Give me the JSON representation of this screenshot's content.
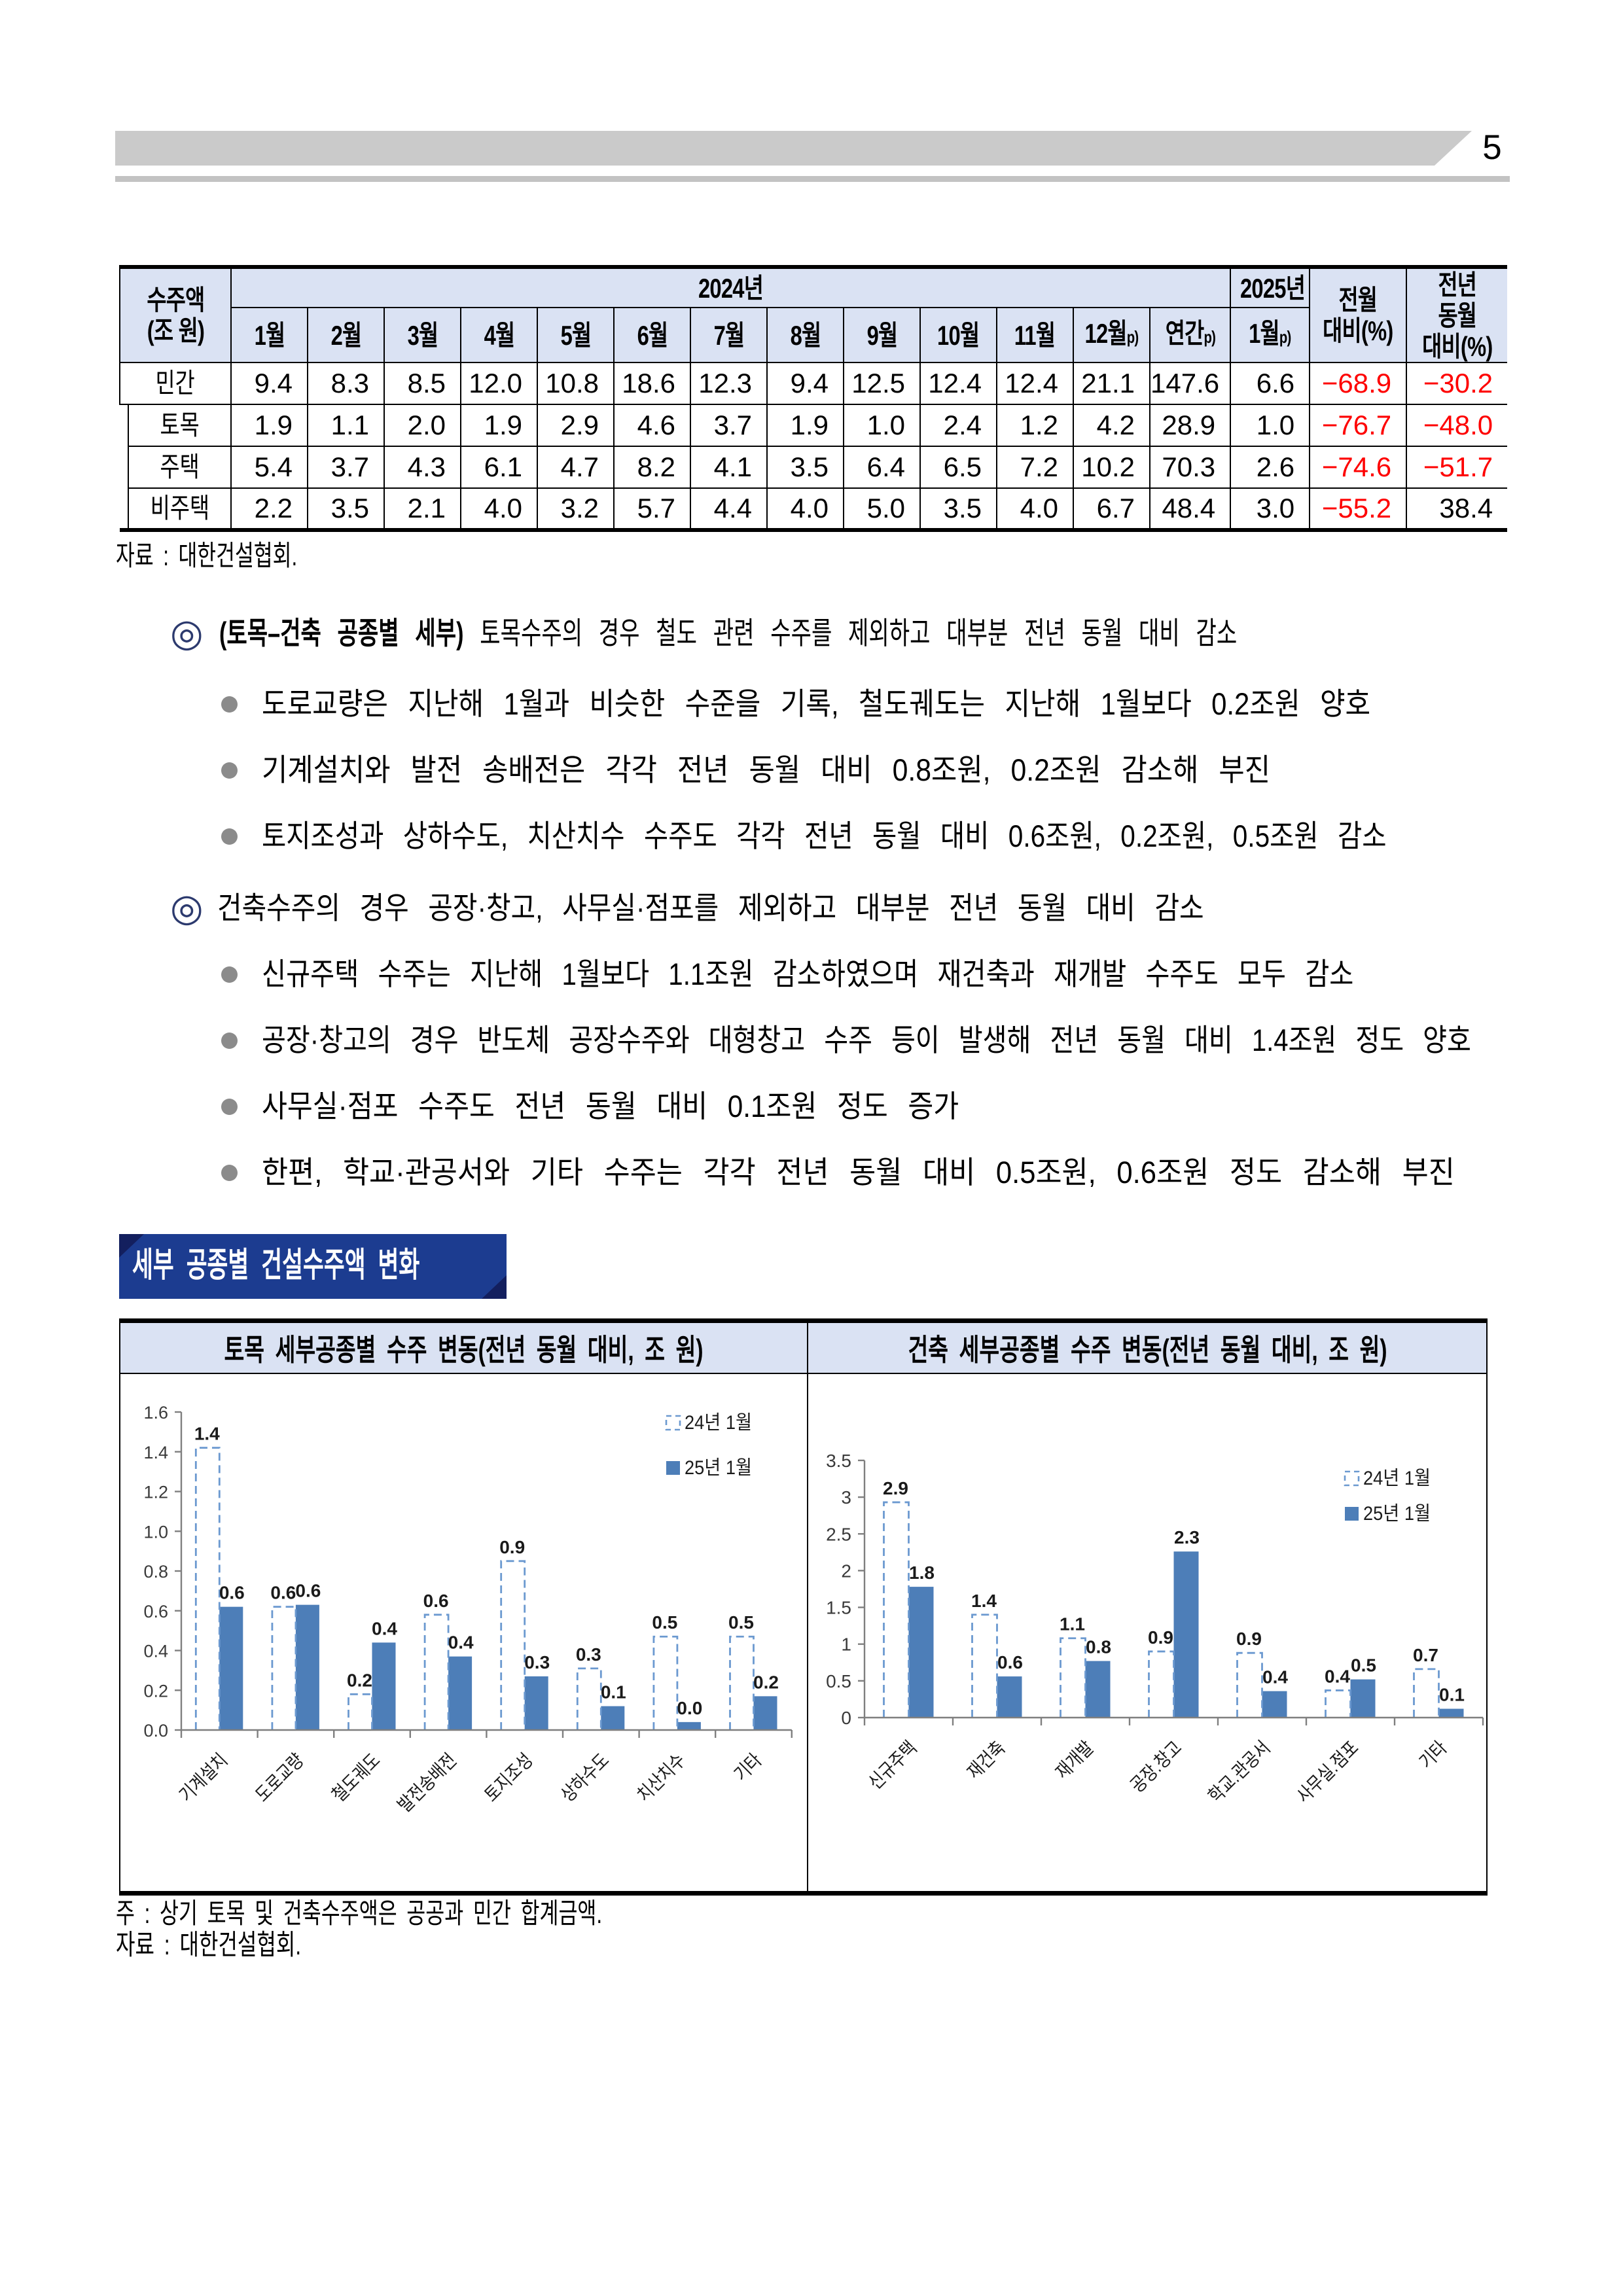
{
  "page": {
    "number": "5"
  },
  "table": {
    "corner_line1": "수주액",
    "corner_line2": "(조 원)",
    "group_2024": "2024년",
    "group_2025": "2025년",
    "col_mom_line1": "전월",
    "col_mom_line2": "대비(%)",
    "col_yoy_line1": "전년",
    "col_yoy_line2": "동월",
    "col_yoy_line3": "대비(%)",
    "month_cols": [
      {
        "label": "1월",
        "sup": ""
      },
      {
        "label": "2월",
        "sup": ""
      },
      {
        "label": "3월",
        "sup": ""
      },
      {
        "label": "4월",
        "sup": ""
      },
      {
        "label": "5월",
        "sup": ""
      },
      {
        "label": "6월",
        "sup": ""
      },
      {
        "label": "7월",
        "sup": ""
      },
      {
        "label": "8월",
        "sup": ""
      },
      {
        "label": "9월",
        "sup": ""
      },
      {
        "label": "10월",
        "sup": ""
      },
      {
        "label": "11월",
        "sup": ""
      },
      {
        "label": "12월",
        "sup": "p)"
      },
      {
        "label": "연간",
        "sup": "p)"
      }
    ],
    "col_jan25": {
      "label": "1월",
      "sup": "p)"
    },
    "rows": [
      {
        "label": "민간",
        "indent": false,
        "values": [
          "9.4",
          "8.3",
          "8.5",
          "12.0",
          "10.8",
          "18.6",
          "12.3",
          "9.4",
          "12.5",
          "12.4",
          "12.4",
          "21.1",
          "147.6"
        ],
        "jan25": "6.6",
        "mom": "−68.9",
        "yoy": "−30.2",
        "mom_red": true,
        "yoy_red": true
      },
      {
        "label": "토목",
        "indent": true,
        "values": [
          "1.9",
          "1.1",
          "2.0",
          "1.9",
          "2.9",
          "4.6",
          "3.7",
          "1.9",
          "1.0",
          "2.4",
          "1.2",
          "4.2",
          "28.9"
        ],
        "jan25": "1.0",
        "mom": "−76.7",
        "yoy": "−48.0",
        "mom_red": true,
        "yoy_red": true
      },
      {
        "label": "주택",
        "indent": true,
        "values": [
          "5.4",
          "3.7",
          "4.3",
          "6.1",
          "4.7",
          "8.2",
          "4.1",
          "3.5",
          "6.4",
          "6.5",
          "7.2",
          "10.2",
          "70.3"
        ],
        "jan25": "2.6",
        "mom": "−74.6",
        "yoy": "−51.7",
        "mom_red": true,
        "yoy_red": true
      },
      {
        "label": "비주택",
        "indent": true,
        "values": [
          "2.2",
          "3.5",
          "2.1",
          "4.0",
          "3.2",
          "5.7",
          "4.4",
          "4.0",
          "5.0",
          "3.5",
          "4.0",
          "6.7",
          "48.4"
        ],
        "jan25": "3.0",
        "mom": "−55.2",
        "yoy": "38.4",
        "mom_red": true,
        "yoy_red": false
      }
    ],
    "source_note": "자료 : 대한건설협회."
  },
  "sections": [
    {
      "marker": "◎",
      "head_bold": "(토목–건축 공종별 세부)",
      "head_rest": " 토목수주의 경우 철도 관련 수주를 제외하고 대부분 전년 동월 대비 감소",
      "bullets": [
        "도로교량은 지난해 1월과 비슷한 수준을 기록, 철도궤도는 지난해 1월보다 0.2조원 양호",
        "기계설치와 발전 송배전은 각각 전년 동월 대비 0.8조원, 0.2조원 감소해 부진",
        "토지조성과 상하수도, 치산치수 수주도 각각 전년 동월 대비 0.6조원, 0.2조원, 0.5조원 감소"
      ]
    },
    {
      "marker": "◎",
      "head_bold": "",
      "head_rest": "건축수주의 경우 공장·창고, 사무실·점포를 제외하고 대부분 전년 동월 대비 감소",
      "bullets": [
        "신규주택 수주는 지난해 1월보다 1.1조원 감소하였으며 재건축과 재개발 수주도 모두 감소",
        "공장·창고의 경우 반도체 공장수주와 대형창고 수주 등이 발생해 전년 동월 대비 1.4조원 정도 양호",
        "사무실·점포 수주도 전년 동월 대비 0.1조원 정도 증가",
        "한편, 학교·관공서와 기타 수주는 각각 전년 동월 대비 0.5조원, 0.6조원 정도 감소해 부진"
      ]
    }
  ],
  "banner": {
    "title": "세부 공종별 건설수주액 변화"
  },
  "chart_notes": [
    "주 : 상기 토목 및 건축수주액은 공공과 민간 합계금액.",
    "자료 : 대한건설협회."
  ],
  "chart_data": [
    {
      "type": "bar",
      "title": "토목 세부공종별 수주 변동(전년 동월 대비, 조 원)",
      "categories": [
        "기계설치",
        "도로교량",
        "철도궤도",
        "발전송배전",
        "토지조성",
        "상하수도",
        "치산치수",
        "기타"
      ],
      "series": [
        {
          "name": "24년 1월",
          "style": "dashed",
          "values": [
            1.4,
            0.6,
            0.2,
            0.6,
            0.9,
            0.3,
            0.5,
            0.5
          ],
          "labels": [
            "1.4",
            "0.6",
            "0.2",
            "0.6",
            "0.9",
            "0.3",
            "0.5",
            "0.5"
          ],
          "display_heights": [
            1.42,
            0.62,
            0.18,
            0.58,
            0.85,
            0.31,
            0.47,
            0.47
          ]
        },
        {
          "name": "25년 1월",
          "style": "solid",
          "values": [
            0.6,
            0.6,
            0.4,
            0.4,
            0.3,
            0.1,
            0.0,
            0.2
          ],
          "labels": [
            "0.6",
            "0.6",
            "0.4",
            "0.4",
            "0.3",
            "0.1",
            "0.0",
            "0.2"
          ],
          "display_heights": [
            0.62,
            0.63,
            0.44,
            0.37,
            0.27,
            0.12,
            0.04,
            0.17
          ]
        }
      ],
      "xlabel": "",
      "ylabel": "",
      "ylim": [
        0,
        1.6
      ],
      "yticks": [
        "0.0",
        "0.2",
        "0.4",
        "0.6",
        "0.8",
        "1.0",
        "1.2",
        "1.4",
        "1.6"
      ],
      "grid": false,
      "legend_position": "top-right"
    },
    {
      "type": "bar",
      "title": "건축 세부공종별 수주 변동(전년 동월 대비, 조 원)",
      "categories": [
        "신규주택",
        "재건축",
        "재개발",
        "공장.창고",
        "학교.관공서",
        "사무실.점포",
        "기타"
      ],
      "series": [
        {
          "name": "24년 1월",
          "style": "dashed",
          "values": [
            2.9,
            1.4,
            1.1,
            0.9,
            0.9,
            0.4,
            0.7
          ],
          "labels": [
            "2.9",
            "1.4",
            "1.1",
            "0.9",
            "0.9",
            "0.4",
            "0.7"
          ],
          "display_heights": [
            2.93,
            1.4,
            1.08,
            0.9,
            0.88,
            0.37,
            0.66
          ]
        },
        {
          "name": "25년 1월",
          "style": "solid",
          "values": [
            1.8,
            0.6,
            0.8,
            2.3,
            0.4,
            0.5,
            0.1
          ],
          "labels": [
            "1.8",
            "0.6",
            "0.8",
            "2.3",
            "0.4",
            "0.5",
            "0.1"
          ],
          "display_heights": [
            1.78,
            0.56,
            0.77,
            2.26,
            0.36,
            0.52,
            0.12
          ]
        }
      ],
      "xlabel": "",
      "ylabel": "",
      "ylim": [
        0,
        3.5
      ],
      "yticks": [
        "0",
        "0.5",
        "1",
        "1.5",
        "2",
        "2.5",
        "3",
        "3.5"
      ],
      "grid": false,
      "legend_position": "top-right"
    }
  ],
  "colors": {
    "bar_solid": "#4d7eb8",
    "bar_dash_stroke": "#6b99d0",
    "axis": "#7f7f7f",
    "tick_text": "#3a3a3a",
    "value_text": "#1a1a1a",
    "table_header_bg": "#dae2f3",
    "banner_main": "#1c3c90",
    "banner_dark": "#131f5e",
    "negative_red": "#fe0000"
  }
}
